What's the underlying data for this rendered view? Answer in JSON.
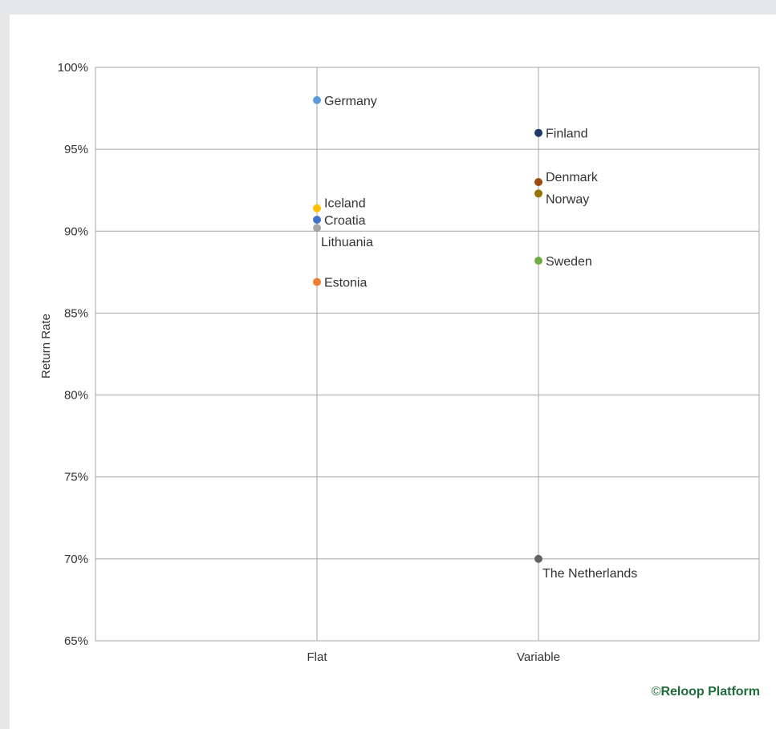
{
  "chart_data": {
    "type": "scatter",
    "title": "",
    "xlabel": "",
    "ylabel": "Return Rate",
    "categories": [
      "Flat",
      "Variable"
    ],
    "ylim": [
      65,
      100
    ],
    "yticks": [
      "65%",
      "70%",
      "75%",
      "80%",
      "85%",
      "90%",
      "95%",
      "100%"
    ],
    "grid": true,
    "legend": "none",
    "points": [
      {
        "label": "Germany",
        "x": "Flat",
        "y": 98,
        "color": "#5b9bd5",
        "label_pos": "right"
      },
      {
        "label": "Iceland",
        "x": "Flat",
        "y": 91.4,
        "color": "#ffc000",
        "label_pos": "right-up"
      },
      {
        "label": "Croatia",
        "x": "Flat",
        "y": 90.7,
        "color": "#4472c4",
        "label_pos": "right"
      },
      {
        "label": "Lithuania",
        "x": "Flat",
        "y": 90.2,
        "color": "#a5a5a5",
        "label_pos": "below"
      },
      {
        "label": "Estonia",
        "x": "Flat",
        "y": 86.9,
        "color": "#ed7d31",
        "label_pos": "right"
      },
      {
        "label": "Finland",
        "x": "Variable",
        "y": 96,
        "color": "#203864",
        "label_pos": "right"
      },
      {
        "label": "Denmark",
        "x": "Variable",
        "y": 93,
        "color": "#9e480e",
        "label_pos": "right-up"
      },
      {
        "label": "Norway",
        "x": "Variable",
        "y": 92.3,
        "color": "#997300",
        "label_pos": "right-down"
      },
      {
        "label": "Sweden",
        "x": "Variable",
        "y": 88.2,
        "color": "#70ad47",
        "label_pos": "right"
      },
      {
        "label": "The Netherlands",
        "x": "Variable",
        "y": 70,
        "color": "#636363",
        "label_pos": "below"
      }
    ]
  },
  "credit": {
    "symbol": "©",
    "text": "Reloop Platform",
    "color": "#1e6b3a"
  }
}
